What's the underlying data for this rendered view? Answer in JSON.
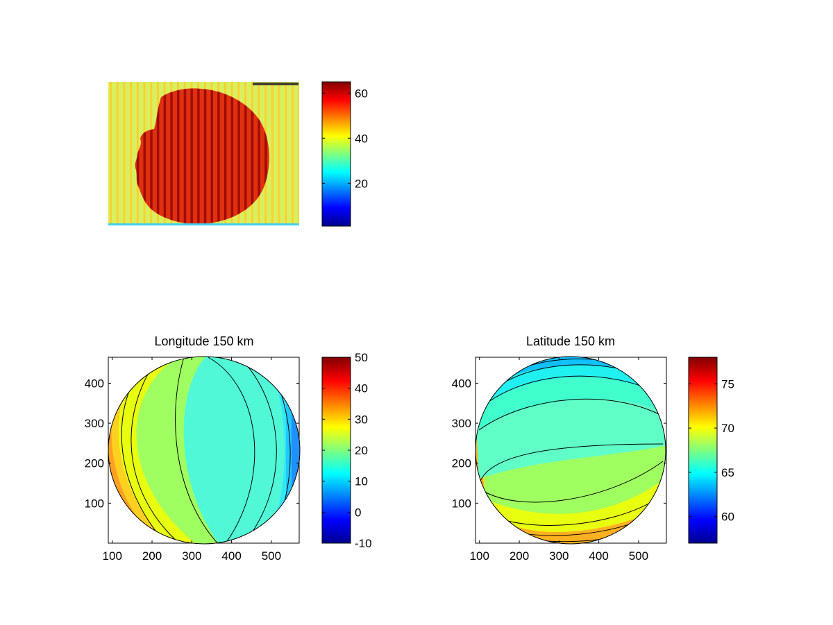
{
  "chart_data": [
    {
      "type": "heatmap",
      "title": "",
      "xlabel": "",
      "ylabel": "",
      "description_values": {
        "colorbar_ticks": [
          20,
          40,
          60
        ],
        "clim": [
          1,
          65
        ]
      },
      "axes_visible": false,
      "grid": false
    },
    {
      "type": "heatmap",
      "title": "Longitude 150 km",
      "xlabel": "",
      "ylabel": "",
      "xticks": [
        100,
        200,
        300,
        400,
        500
      ],
      "yticks": [
        100,
        200,
        300,
        400
      ],
      "xlim": [
        90,
        570
      ],
      "ylim": [
        0,
        465
      ],
      "colorbar_ticks": [
        -10,
        0,
        10,
        20,
        30,
        40,
        50
      ],
      "clim": [
        -10,
        50
      ],
      "contour_levels": [
        -5,
        0,
        5,
        10,
        15,
        20,
        25,
        30,
        35,
        40,
        45
      ],
      "grid": false
    },
    {
      "type": "heatmap",
      "title": "Latitude 150 km",
      "xlabel": "",
      "ylabel": "",
      "xticks": [
        100,
        200,
        300,
        400,
        500
      ],
      "yticks": [
        100,
        200,
        300,
        400
      ],
      "xlim": [
        90,
        570
      ],
      "ylim": [
        0,
        465
      ],
      "colorbar_ticks": [
        60,
        65,
        70,
        75
      ],
      "clim": [
        57,
        78
      ],
      "contour_levels": [
        58,
        60,
        62,
        63,
        64,
        65,
        66,
        67,
        68,
        69,
        70,
        71,
        72,
        73,
        74,
        75
      ],
      "grid": false
    }
  ]
}
